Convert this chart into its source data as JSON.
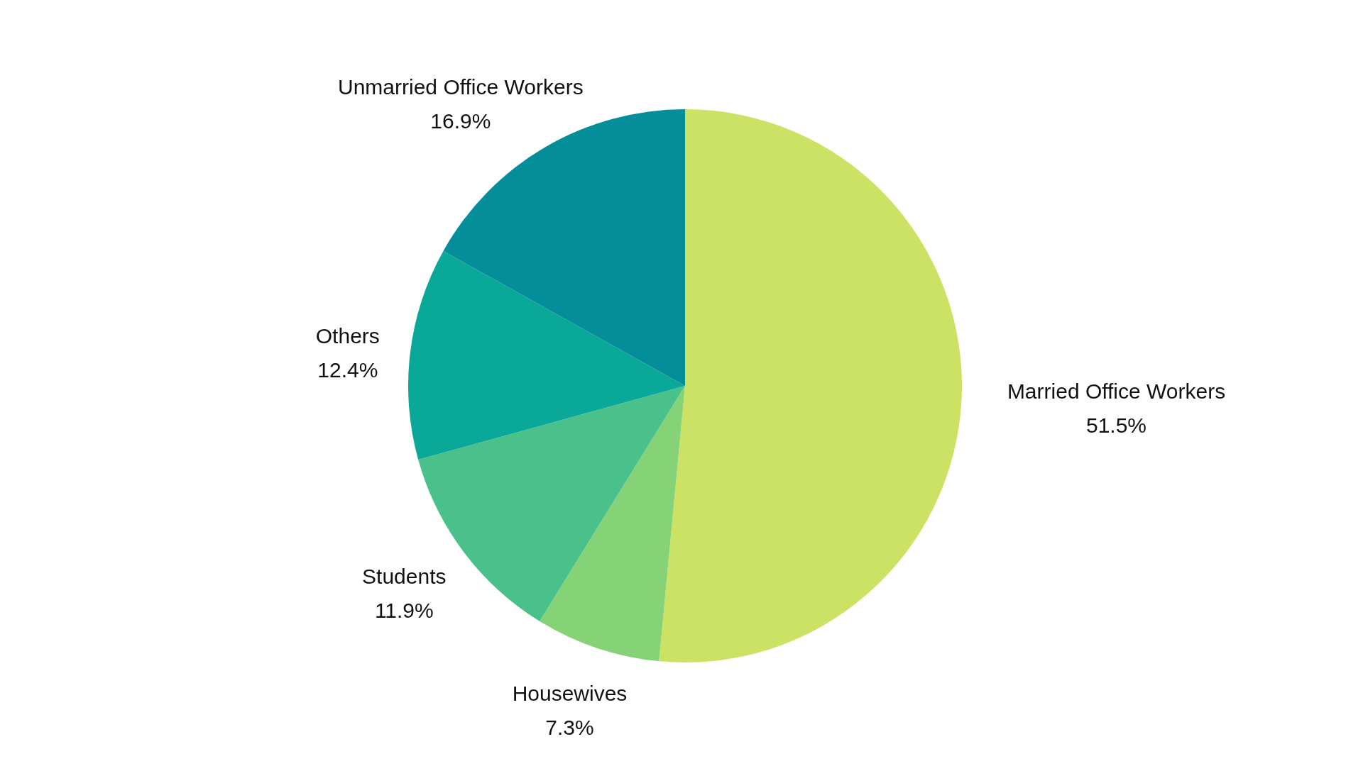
{
  "chart_data": {
    "type": "pie",
    "categories": [
      "Married Office Workers",
      "Housewives",
      "Students",
      "Others",
      "Unmarried Office Workers"
    ],
    "values": [
      51.5,
      7.3,
      11.9,
      12.4,
      16.9
    ],
    "value_labels": [
      "51.5%",
      "7.3%",
      "11.9%",
      "12.4%",
      "16.9%"
    ],
    "colors": [
      "#cbe265",
      "#86d277",
      "#4ac18b",
      "#09a898",
      "#038e99"
    ],
    "legend": false
  }
}
